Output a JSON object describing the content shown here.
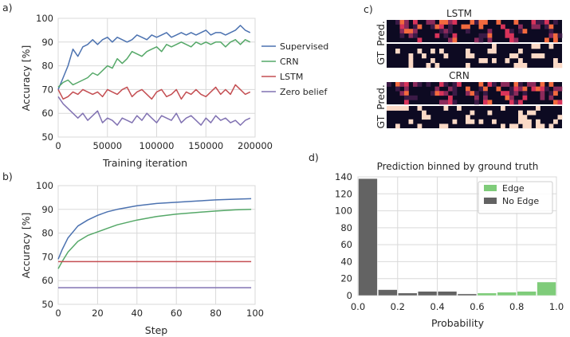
{
  "panel_labels": [
    "a)",
    "b)",
    "c)",
    "d)"
  ],
  "colors": {
    "supervised": "#4c72b0",
    "crn": "#55a868",
    "lstm": "#c44e52",
    "zero_belief": "#8172b2",
    "edge": "#7fcc7a",
    "no_edge": "#636363",
    "grid": "#d9d9d9"
  },
  "chart_data": [
    {
      "id": "a",
      "type": "line",
      "xlabel": "Training iteration",
      "ylabel": "Accuracy [%]",
      "xlim": [
        0,
        200000
      ],
      "ylim": [
        50,
        100
      ],
      "xticks": [
        0,
        50000,
        100000,
        150000,
        200000
      ],
      "yticks": [
        50,
        60,
        70,
        80,
        90,
        100
      ],
      "grid": true,
      "legend_position": "right-outside",
      "x": [
        0,
        5000,
        10000,
        15000,
        20000,
        25000,
        30000,
        35000,
        40000,
        45000,
        50000,
        55000,
        60000,
        65000,
        70000,
        75000,
        80000,
        85000,
        90000,
        95000,
        100000,
        105000,
        110000,
        115000,
        120000,
        125000,
        130000,
        135000,
        140000,
        145000,
        150000,
        155000,
        160000,
        165000,
        170000,
        175000,
        180000,
        185000,
        190000,
        195000
      ],
      "series": [
        {
          "name": "Supervised",
          "color_key": "supervised",
          "values": [
            70,
            75,
            80,
            87,
            84,
            88,
            89,
            91,
            89,
            91,
            92,
            90,
            92,
            91,
            90,
            91,
            93,
            92,
            91,
            93,
            92,
            93,
            94,
            92,
            93,
            94,
            93,
            94,
            93,
            94,
            95,
            93,
            94,
            94,
            93,
            94,
            95,
            97,
            95,
            94
          ]
        },
        {
          "name": "CRN",
          "color_key": "crn",
          "values": [
            71,
            73,
            74,
            72,
            73,
            74,
            75,
            77,
            76,
            78,
            80,
            79,
            83,
            81,
            83,
            86,
            85,
            84,
            86,
            87,
            88,
            86,
            89,
            88,
            89,
            90,
            89,
            88,
            90,
            89,
            90,
            89,
            90,
            90,
            88,
            90,
            91,
            89,
            91,
            90
          ]
        },
        {
          "name": "LSTM",
          "color_key": "lstm",
          "values": [
            70,
            66,
            67,
            69,
            68,
            70,
            69,
            68,
            69,
            67,
            70,
            69,
            68,
            70,
            71,
            67,
            69,
            70,
            68,
            66,
            69,
            70,
            67,
            68,
            70,
            66,
            69,
            68,
            70,
            68,
            67,
            69,
            71,
            68,
            70,
            68,
            72,
            70,
            68,
            69
          ]
        },
        {
          "name": "Zero belief",
          "color_key": "zero_belief",
          "values": [
            67,
            64,
            62,
            60,
            58,
            60,
            57,
            59,
            61,
            56,
            58,
            57,
            55,
            58,
            57,
            56,
            59,
            57,
            60,
            58,
            56,
            59,
            58,
            57,
            60,
            56,
            58,
            59,
            57,
            55,
            58,
            56,
            59,
            57,
            58,
            56,
            57,
            55,
            57,
            58
          ]
        }
      ]
    },
    {
      "id": "b",
      "type": "line",
      "xlabel": "Step",
      "ylabel": "Accuracy [%]",
      "xlim": [
        0,
        100
      ],
      "ylim": [
        50,
        100
      ],
      "xticks": [
        0,
        20,
        40,
        60,
        80,
        100
      ],
      "yticks": [
        50,
        60,
        70,
        80,
        90,
        100
      ],
      "grid": true,
      "x": [
        0,
        2,
        5,
        10,
        15,
        20,
        25,
        30,
        40,
        50,
        60,
        70,
        80,
        90,
        98
      ],
      "series": [
        {
          "name": "Supervised",
          "color_key": "supervised",
          "values": [
            69,
            73,
            78,
            83,
            85.5,
            87.5,
            89,
            90,
            91.5,
            92.5,
            93,
            93.5,
            94,
            94.3,
            94.5
          ]
        },
        {
          "name": "CRN",
          "color_key": "crn",
          "values": [
            65,
            68,
            72,
            76.5,
            79,
            80.5,
            82,
            83.5,
            85.5,
            87,
            88,
            88.7,
            89.3,
            89.8,
            90
          ]
        },
        {
          "name": "LSTM",
          "color_key": "lstm",
          "values": [
            68,
            68,
            68,
            68,
            68,
            68,
            68,
            68,
            68,
            68,
            68,
            68,
            68,
            68,
            68
          ]
        },
        {
          "name": "Zero belief",
          "color_key": "zero_belief",
          "values": [
            57,
            57,
            57,
            57,
            57,
            57,
            57,
            57,
            57,
            57,
            57,
            57,
            57,
            57,
            57
          ]
        }
      ]
    },
    {
      "id": "c",
      "type": "heatmap",
      "rows": [
        "Pred.",
        "GT"
      ],
      "panels": [
        {
          "title": "LSTM"
        },
        {
          "title": "CRN"
        }
      ],
      "palette": [
        "#0d0a22",
        "#3b1a46",
        "#8b2a5a",
        "#d8335a",
        "#f36a3e",
        "#fbd9c6"
      ]
    },
    {
      "id": "d",
      "type": "bar",
      "title": "Prediction binned by ground truth",
      "xlabel": "Probability",
      "ylabel": "",
      "xlim": [
        0,
        1
      ],
      "ylim": [
        0,
        140
      ],
      "xticks": [
        0.0,
        0.2,
        0.4,
        0.6,
        0.8,
        1.0
      ],
      "yticks": [
        0,
        20,
        40,
        60,
        80,
        100,
        120,
        140
      ],
      "grid": true,
      "legend_position": "top-right",
      "bin_edges": [
        0.0,
        0.1,
        0.2,
        0.3,
        0.4,
        0.5,
        0.6,
        0.7,
        0.8,
        0.9,
        1.0
      ],
      "series": [
        {
          "name": "Edge",
          "color_key": "edge",
          "values": [
            0,
            0,
            0,
            0,
            0,
            1,
            3,
            4,
            5,
            16
          ]
        },
        {
          "name": "No Edge",
          "color_key": "no_edge",
          "values": [
            138,
            7,
            3,
            5,
            5,
            2,
            0,
            0,
            0,
            0
          ]
        }
      ]
    }
  ]
}
